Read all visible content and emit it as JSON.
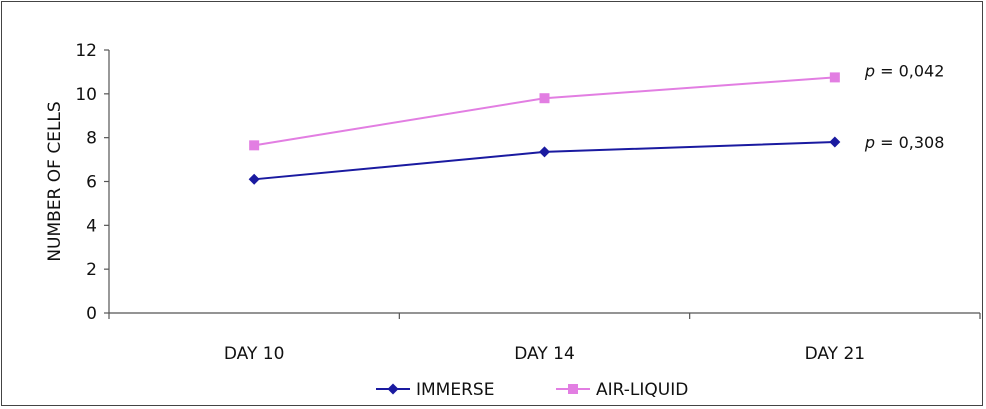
{
  "chart_data": {
    "type": "line",
    "categories": [
      "DAY 10",
      "DAY 14",
      "DAY 21"
    ],
    "ylabel": "NUMBER OF CELLS",
    "xlabel": "",
    "ylim": [
      0,
      12
    ],
    "yticks": [
      0,
      2,
      4,
      6,
      8,
      10,
      12
    ],
    "grid": false,
    "legend_position": "bottom",
    "series": [
      {
        "name": "IMMERSE",
        "values": [
          6.1,
          7.35,
          7.8
        ],
        "color": "#1a1aa0",
        "marker": "diamond"
      },
      {
        "name": "AIR-LIQUID",
        "values": [
          7.65,
          9.8,
          10.75
        ],
        "color": "#e27ee2",
        "marker": "square"
      }
    ],
    "annotations": [
      {
        "p": "p",
        "text": " = 0,042"
      },
      {
        "p": "p",
        "text": " = 0,308"
      }
    ]
  }
}
